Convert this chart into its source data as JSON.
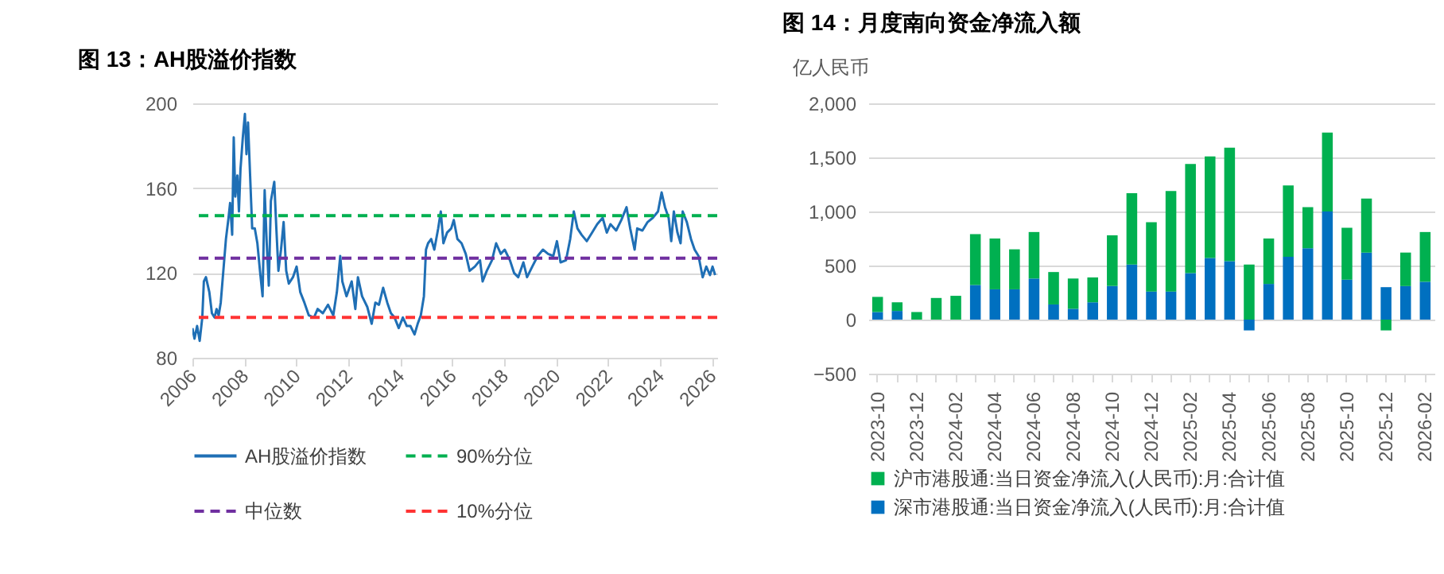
{
  "chart_data": [
    {
      "type": "line",
      "title": "图 13：AH股溢价指数",
      "xlim": [
        2006,
        2026.2
      ],
      "xticks": [
        2006,
        2008,
        2010,
        2012,
        2014,
        2016,
        2018,
        2020,
        2022,
        2024,
        2026
      ],
      "ylim": [
        80,
        200
      ],
      "yticks": [
        80,
        120,
        160,
        200
      ],
      "grid": "y",
      "legend": "bottom",
      "marker": "none",
      "line_style": "solid",
      "x": [
        2006.0,
        2006.08,
        2006.18,
        2006.28,
        2006.38,
        2006.44,
        2006.52,
        2006.65,
        2006.75,
        2006.85,
        2006.93,
        2007.01,
        2007.09,
        2007.19,
        2007.29,
        2007.39,
        2007.45,
        2007.53,
        2007.59,
        2007.65,
        2007.73,
        2007.79,
        2007.85,
        2007.94,
        2008.02,
        2008.08,
        2008.14,
        2008.22,
        2008.3,
        2008.4,
        2008.5,
        2008.6,
        2008.7,
        2008.78,
        2008.86,
        2008.94,
        2009.02,
        2009.15,
        2009.23,
        2009.31,
        2009.41,
        2009.51,
        2009.61,
        2009.71,
        2009.87,
        2010.01,
        2010.15,
        2010.31,
        2010.48,
        2010.68,
        2010.82,
        2011.02,
        2011.22,
        2011.42,
        2011.56,
        2011.69,
        2011.77,
        2011.93,
        2012.13,
        2012.27,
        2012.37,
        2012.53,
        2012.73,
        2012.9,
        2013.04,
        2013.18,
        2013.34,
        2013.5,
        2013.64,
        2013.78,
        2013.94,
        2014.1,
        2014.25,
        2014.39,
        2014.55,
        2014.67,
        2014.79,
        2014.91,
        2014.99,
        2015.07,
        2015.19,
        2015.31,
        2015.46,
        2015.56,
        2015.66,
        2015.8,
        2015.96,
        2016.06,
        2016.2,
        2016.36,
        2016.52,
        2016.67,
        2016.87,
        2017.07,
        2017.17,
        2017.33,
        2017.53,
        2017.69,
        2017.87,
        2018.02,
        2018.22,
        2018.38,
        2018.54,
        2018.74,
        2018.88,
        2019.08,
        2019.29,
        2019.49,
        2019.69,
        2019.89,
        2020.03,
        2020.17,
        2020.38,
        2020.54,
        2020.68,
        2020.82,
        2020.98,
        2021.18,
        2021.38,
        2021.58,
        2021.79,
        2021.95,
        2022.09,
        2022.31,
        2022.51,
        2022.71,
        2022.85,
        2023.02,
        2023.12,
        2023.32,
        2023.52,
        2023.72,
        2023.92,
        2024.06,
        2024.19,
        2024.33,
        2024.43,
        2024.53,
        2024.67,
        2024.79,
        2024.87,
        2025.03,
        2025.19,
        2025.33,
        2025.48,
        2025.64,
        2025.78,
        2025.92,
        2026.02,
        2026.12
      ],
      "series": [
        {
          "name": "AH股溢价指数",
          "color": "#1f6fb5",
          "values": [
            94,
            89,
            95,
            88,
            99,
            116,
            118,
            111,
            101,
            99,
            103,
            100,
            106,
            121,
            136,
            146,
            153,
            138,
            184,
            156,
            166,
            149,
            169,
            184,
            195,
            176,
            191,
            166,
            141,
            141,
            134,
            121,
            109,
            159,
            134,
            114,
            154,
            163,
            141,
            121,
            131,
            144,
            121,
            115,
            118,
            123,
            111,
            106,
            100,
            99,
            103,
            101,
            105,
            100,
            111,
            128,
            116,
            109,
            116,
            103,
            118,
            109,
            104,
            96,
            106,
            105,
            113,
            106,
            101,
            99,
            94,
            99,
            95,
            95,
            91,
            96,
            100,
            109,
            131,
            134,
            136,
            131,
            141,
            149,
            134,
            139,
            141,
            145,
            136,
            134,
            129,
            121,
            123,
            126,
            116,
            121,
            126,
            134,
            129,
            131,
            126,
            120,
            118,
            125,
            118,
            123,
            128,
            131,
            129,
            128,
            135,
            125,
            126,
            136,
            149,
            141,
            138,
            135,
            139,
            143,
            146,
            139,
            143,
            140,
            145,
            151,
            141,
            131,
            141,
            140,
            144,
            146,
            149,
            158,
            151,
            146,
            135,
            149,
            139,
            134,
            149,
            144,
            136,
            131,
            128,
            118,
            123,
            119,
            123,
            119
          ]
        }
      ],
      "ref_lines": [
        {
          "axis": "y",
          "value": 147,
          "label": "90%分位",
          "color": "#00b050",
          "line_style": "dashed"
        },
        {
          "axis": "y",
          "value": 127,
          "label": "中位数",
          "color": "#7030a0",
          "line_style": "dashed"
        },
        {
          "axis": "y",
          "value": 99,
          "label": "10%分位",
          "color": "#ff3333",
          "line_style": "dashed"
        }
      ]
    },
    {
      "type": "bar",
      "title": "图 14：月度南向资金净流入额",
      "ylabel": "亿人民币",
      "stacked": true,
      "ylim": [
        -500,
        2000
      ],
      "yticks": [
        -500,
        0,
        500,
        {
          "value": 1000,
          "label": "1,000"
        },
        {
          "value": 1500,
          "label": "1,500"
        },
        {
          "value": 2000,
          "label": "2,000"
        }
      ],
      "grid": "y",
      "legend": "bottom",
      "categories": [
        "2023-10",
        null,
        "2023-12",
        null,
        "2024-02",
        null,
        "2024-04",
        null,
        "2024-06",
        null,
        "2024-08",
        null,
        "2024-10",
        null,
        "2024-12",
        null,
        "2025-02",
        null,
        "2025-04",
        null,
        "2025-06",
        null,
        "2025-08",
        null,
        "2025-10",
        null,
        "2025-12",
        null,
        "2026-02"
      ],
      "series": [
        {
          "name": "深市港股通:当日资金净流入(人民币):月:合计值",
          "color": "#0070c0",
          "values": [
            70,
            80,
            0,
            0,
            0,
            320,
            280,
            280,
            380,
            140,
            100,
            160,
            310,
            510,
            260,
            260,
            430,
            570,
            540,
            -100,
            330,
            580,
            660,
            1000,
            370,
            620,
            300,
            310,
            350
          ]
        },
        {
          "name": "沪市港股通:当日资金净流入(人民币):月:合计值",
          "color": "#00b050",
          "values": [
            140,
            80,
            70,
            200,
            220,
            470,
            470,
            370,
            430,
            300,
            280,
            230,
            470,
            660,
            640,
            930,
            1010,
            940,
            1050,
            510,
            420,
            660,
            380,
            730,
            480,
            500,
            -100,
            310,
            460
          ]
        }
      ]
    }
  ]
}
